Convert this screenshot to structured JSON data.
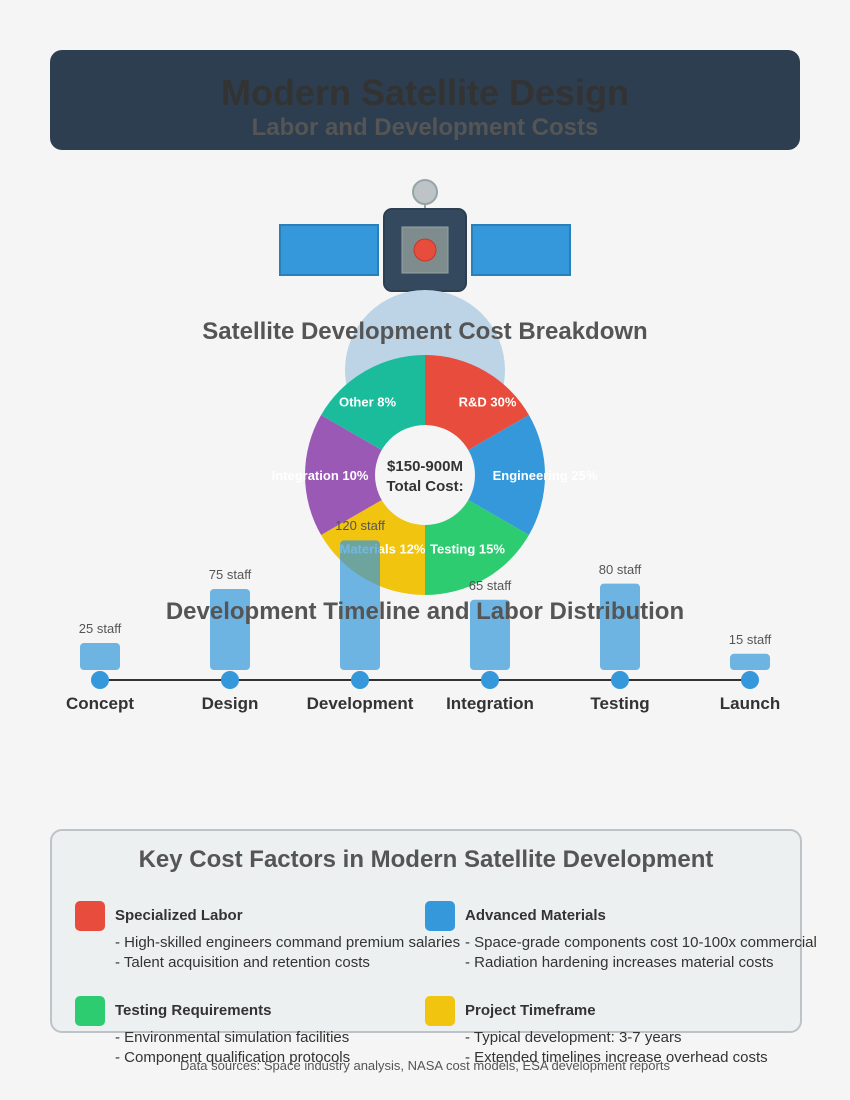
{
  "header": {
    "title": "Modern Satellite Design",
    "subtitle": "Labor and Development Costs"
  },
  "colors": {
    "header_bg": "#2c3e50",
    "red": "#e74c3c",
    "blue": "#3498db",
    "green": "#2ecc71",
    "yellow": "#f1c40f",
    "purple": "#9b59b6",
    "teal": "#1abc9c"
  },
  "cost_chart": {
    "title": "Satellite Development Cost Breakdown",
    "center_line1": "$150-900M",
    "center_line2": "Total Cost:"
  },
  "timeline": {
    "title": "Development Timeline and Labor Distribution"
  },
  "chart_data": [
    {
      "type": "pie",
      "title": "Satellite Development Cost Breakdown",
      "slices": [
        {
          "label": "R&D 30%",
          "value": 30,
          "color": "#e74c3c"
        },
        {
          "label": "Engineering 25%",
          "value": 25,
          "color": "#3498db"
        },
        {
          "label": "Testing 15%",
          "value": 15,
          "color": "#2ecc71"
        },
        {
          "label": "Materials 12%",
          "value": 12,
          "color": "#f1c40f"
        },
        {
          "label": "Integration 10%",
          "value": 10,
          "color": "#9b59b6"
        },
        {
          "label": "Other 8%",
          "value": 8,
          "color": "#1abc9c"
        }
      ]
    },
    {
      "type": "bar",
      "title": "Development Timeline and Labor Distribution",
      "categories": [
        "Concept",
        "Design",
        "Development",
        "Integration",
        "Testing",
        "Launch"
      ],
      "values": [
        25,
        75,
        120,
        65,
        80,
        15
      ],
      "value_labels": [
        "25 staff",
        "75 staff",
        "120 staff",
        "65 staff",
        "80 staff",
        "15 staff"
      ]
    }
  ],
  "factors": {
    "title": "Key Cost Factors in Modern Satellite Development",
    "items": [
      {
        "name": "Specialized Labor",
        "color": "#e74c3c",
        "lines": [
          "- High-skilled engineers command premium salaries",
          "- Talent acquisition and retention costs"
        ]
      },
      {
        "name": "Advanced Materials",
        "color": "#3498db",
        "lines": [
          "- Space-grade components cost 10-100x commercial",
          "- Radiation hardening increases material costs"
        ]
      },
      {
        "name": "Testing Requirements",
        "color": "#2ecc71",
        "lines": [
          "- Environmental simulation facilities",
          "- Component qualification protocols"
        ]
      },
      {
        "name": "Project Timeframe",
        "color": "#f1c40f",
        "lines": [
          "- Typical development: 3-7 years",
          "- Extended timelines increase overhead costs"
        ]
      }
    ]
  },
  "footer": {
    "source": "Data sources: Space industry analysis, NASA cost models, ESA development reports"
  }
}
